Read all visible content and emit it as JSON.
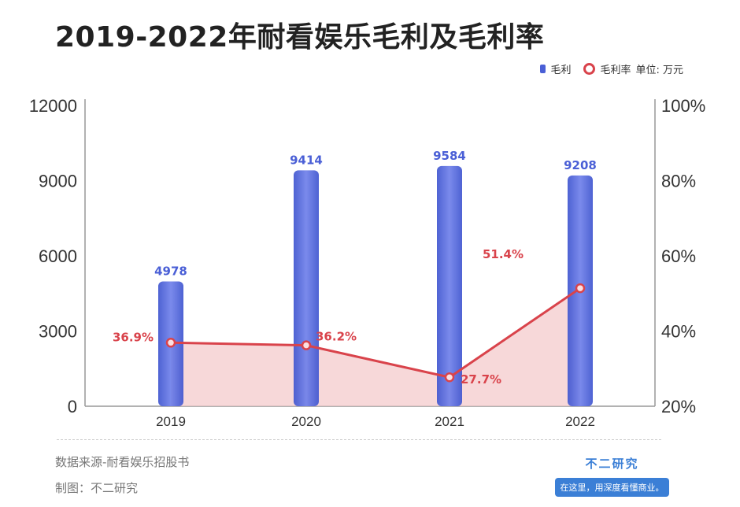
{
  "title": "2019-2022年耐看娱乐毛利及毛利率",
  "legend": {
    "bar_label": "毛利",
    "line_label": "毛利率",
    "unit": "单位: 万元"
  },
  "colors": {
    "bar": "#4a5fd6",
    "line": "#d9434b",
    "area": "#f3c7c9",
    "bar_label": "#4a5fd6",
    "line_label": "#d9434b"
  },
  "chart_data": {
    "type": "bar",
    "categories": [
      "2019",
      "2020",
      "2021",
      "2022"
    ],
    "series": [
      {
        "name": "毛利",
        "type": "bar",
        "axis": "left",
        "values": [
          4978,
          9414,
          9584,
          9208
        ],
        "labels": [
          "4978",
          "9414",
          "9584",
          "9208"
        ]
      },
      {
        "name": "毛利率",
        "type": "line",
        "axis": "right",
        "values": [
          36.9,
          36.2,
          27.7,
          51.4
        ],
        "labels": [
          "36.9%",
          "36.2%",
          "27.7%",
          "51.4%"
        ]
      }
    ],
    "ylim_left": [
      0,
      12000
    ],
    "yticks_left": [
      "0",
      "3000",
      "6000",
      "9000",
      "12000"
    ],
    "ylim_right": [
      20,
      100
    ],
    "yticks_right": [
      "20%",
      "40%",
      "60%",
      "80%",
      "100%"
    ],
    "grid": false
  },
  "footer": {
    "source": "数据来源-耐看娱乐招股书",
    "maker": "制图：不二研究",
    "brand_name": "不二研究",
    "brand_tag": "在这里，用深度看懂商业。"
  }
}
